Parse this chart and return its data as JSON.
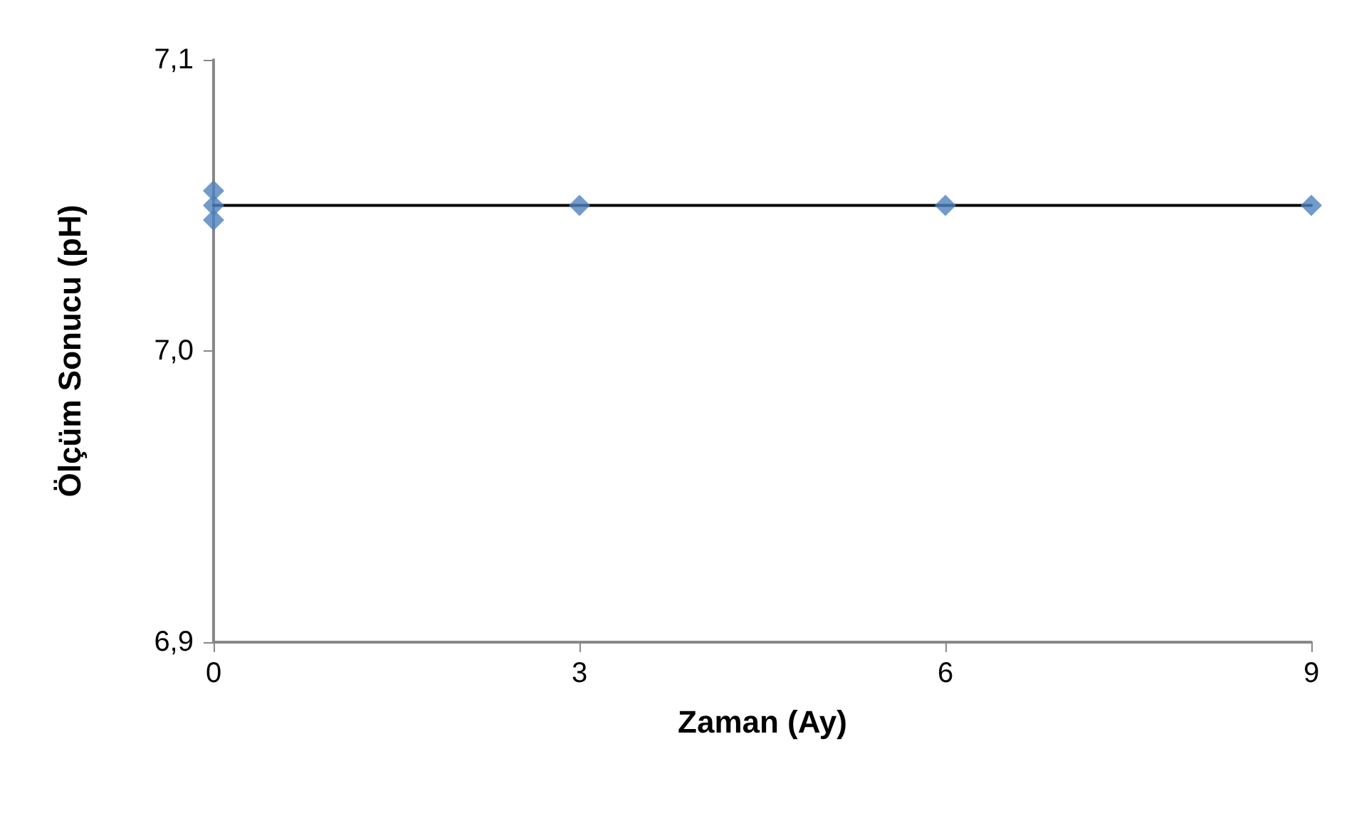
{
  "chart_data": {
    "type": "scatter",
    "xlabel": "Zaman (Ay)",
    "ylabel": "Ölçüm Sonucu (pH)",
    "xlim": [
      0,
      9
    ],
    "xticks": [
      0,
      3,
      6,
      9
    ],
    "ylim": [
      6.9,
      7.1
    ],
    "yticks": [
      {
        "value": 6.9,
        "label": "6,9"
      },
      {
        "value": 7.0,
        "label": "7,0"
      },
      {
        "value": 7.1,
        "label": "7,1"
      }
    ],
    "grid": false,
    "marker": "diamond",
    "series": [
      {
        "type": "scatter",
        "color": "#4f81bd",
        "x": [
          0,
          0,
          0,
          3,
          6,
          9
        ],
        "values": [
          7.055,
          7.05,
          7.045,
          7.05,
          7.05,
          7.05
        ]
      },
      {
        "type": "line",
        "color": "#000000",
        "marker": "none",
        "line_style": "solid",
        "x": [
          0,
          9
        ],
        "values": [
          7.05,
          7.05
        ]
      }
    ]
  }
}
